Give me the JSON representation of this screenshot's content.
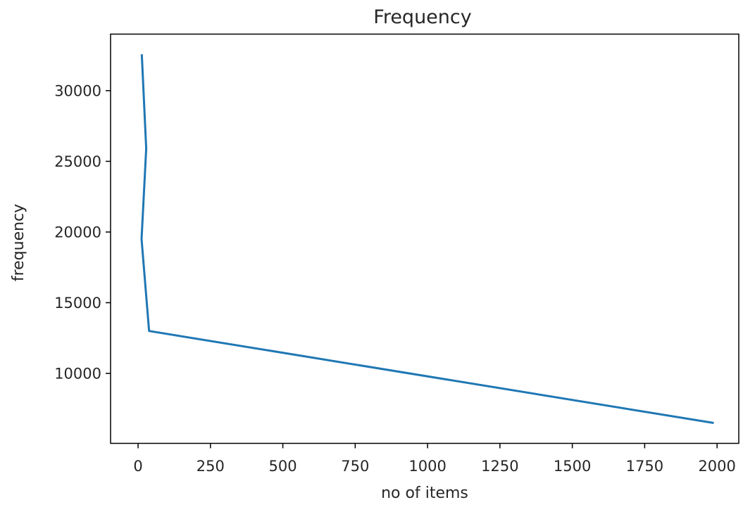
{
  "chart_data": {
    "type": "line",
    "title": "Frequency",
    "xlabel": "no of items",
    "ylabel": "frequency",
    "xlim": [
      -95,
      2075
    ],
    "ylim": [
      5050,
      34000
    ],
    "xticks": [
      0,
      250,
      500,
      750,
      1000,
      1250,
      1500,
      1750,
      2000
    ],
    "yticks": [
      10000,
      15000,
      20000,
      25000,
      30000
    ],
    "grid": false,
    "legend": "none",
    "series": [
      {
        "color": "#1f77b4",
        "x": [
          13,
          28,
          12,
          38,
          1985
        ],
        "y": [
          32500,
          25900,
          19500,
          13000,
          6500
        ]
      }
    ]
  }
}
